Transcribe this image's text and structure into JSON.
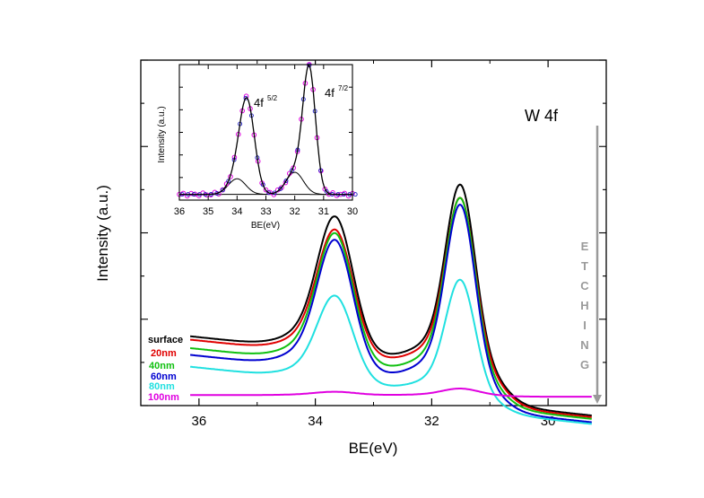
{
  "chart_data": {
    "type": "line",
    "title": "W 4f",
    "xlabel": "BE(eV)",
    "ylabel": "Intensity (a.u.)",
    "xlim": [
      37,
      29
    ],
    "x_reversed": true,
    "xticks": [
      "36",
      "34",
      "32",
      "30"
    ],
    "ylim": [
      0,
      1
    ],
    "y_ticks_labeled": false,
    "etching_label": [
      "E",
      "T",
      "C",
      "H",
      "I",
      "N",
      "G"
    ],
    "series": [
      {
        "name": "surface",
        "color": "#000000",
        "base": 0.145,
        "p1": 0.56,
        "p2": 0.7,
        "w1": 0.3,
        "w2": 0.25,
        "gap": 0.2,
        "right": 0.035
      },
      {
        "name": "20nm",
        "color": "#e00000",
        "base": 0.135,
        "p1": 0.52,
        "p2": 0.66,
        "w1": 0.3,
        "w2": 0.25,
        "gap": 0.18,
        "right": 0.03
      },
      {
        "name": "40nm",
        "color": "#10c010",
        "base": 0.11,
        "p1": 0.51,
        "p2": 0.66,
        "w1": 0.3,
        "w2": 0.25,
        "gap": 0.15,
        "right": 0.025
      },
      {
        "name": "60nm",
        "color": "#0000d0",
        "base": 0.09,
        "p1": 0.49,
        "p2": 0.64,
        "w1": 0.3,
        "w2": 0.25,
        "gap": 0.13,
        "right": 0.015
      },
      {
        "name": "80nm",
        "color": "#20e0e0",
        "base": 0.055,
        "p1": 0.32,
        "p2": 0.41,
        "w1": 0.3,
        "w2": 0.25,
        "gap": 0.06,
        "right": 0.01
      },
      {
        "name": "100nm",
        "color": "#e000e0",
        "base": 0.01,
        "p1": 0.02,
        "p2": 0.03,
        "w1": 0.35,
        "w2": 0.3,
        "gap": 0.005,
        "right": 0.005
      }
    ],
    "peaks_eV": [
      33.65,
      31.5
    ],
    "inset": {
      "xlabel": "BE(eV)",
      "ylabel": "Intensity (a.u.)",
      "xlim": [
        36,
        30
      ],
      "xticks": [
        "36",
        "35",
        "34",
        "33",
        "32",
        "31",
        "30"
      ],
      "labels": {
        "p1_main": "4f",
        "p1_sup": "5/2",
        "p2_main": "4f",
        "p2_sup": "7/2"
      },
      "components": [
        {
          "center": 33.65,
          "amp": 0.68,
          "sigma": 0.26
        },
        {
          "center": 31.5,
          "amp": 0.95,
          "sigma": 0.22
        },
        {
          "center": 34.0,
          "amp": 0.12,
          "sigma": 0.3
        },
        {
          "center": 32.0,
          "amp": 0.17,
          "sigma": 0.3
        }
      ],
      "background": 0.03,
      "colors": {
        "fit": "#000000",
        "data_circle": "#e000e0",
        "component_circle": "#2020c0"
      }
    }
  }
}
